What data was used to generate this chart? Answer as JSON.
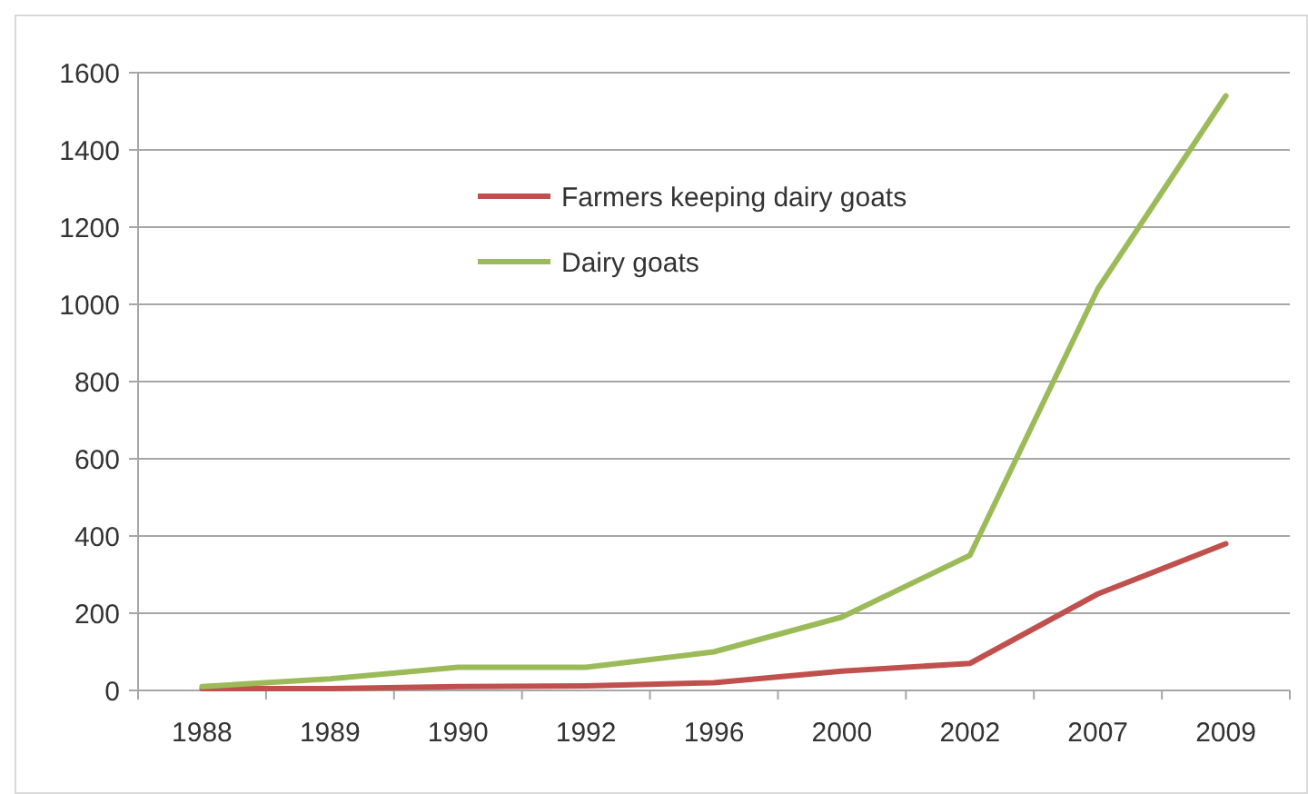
{
  "chart_data": {
    "type": "line",
    "categories": [
      "1988",
      "1989",
      "1990",
      "1992",
      "1996",
      "2000",
      "2002",
      "2007",
      "2009"
    ],
    "series": [
      {
        "name": "Farmers keeping dairy goats",
        "color": "#c0504d",
        "values": [
          5,
          5,
          10,
          12,
          20,
          50,
          70,
          250,
          380
        ]
      },
      {
        "name": "Dairy goats",
        "color": "#9bbb59",
        "values": [
          10,
          30,
          60,
          60,
          100,
          190,
          350,
          1040,
          1540
        ]
      }
    ],
    "ylim": [
      0,
      1600
    ],
    "yticks": [
      0,
      200,
      400,
      600,
      800,
      1000,
      1200,
      1400,
      1600
    ],
    "grid": "y",
    "legend": "top",
    "marker": "none",
    "line_style": "solid"
  }
}
